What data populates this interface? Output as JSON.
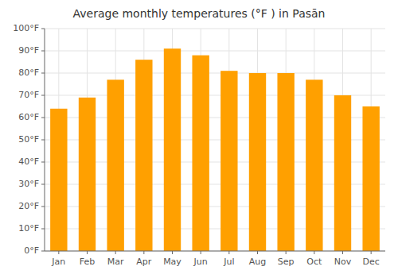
{
  "chart_data": {
    "type": "bar",
    "title": "Average monthly temperatures (°F ) in Pasān",
    "categories": [
      "Jan",
      "Feb",
      "Mar",
      "Apr",
      "May",
      "Jun",
      "Jul",
      "Aug",
      "Sep",
      "Oct",
      "Nov",
      "Dec"
    ],
    "values": [
      64,
      69,
      77,
      86,
      91,
      88,
      81,
      80,
      80,
      77,
      70,
      65
    ],
    "color": "#FFA000",
    "ylim": [
      0,
      100
    ],
    "yticks": [
      {
        "value": 0,
        "label": "0°F"
      },
      {
        "value": 10,
        "label": "10°F"
      },
      {
        "value": 20,
        "label": "20°F"
      },
      {
        "value": 30,
        "label": "30°F"
      },
      {
        "value": 40,
        "label": "40°F"
      },
      {
        "value": 50,
        "label": "50°F"
      },
      {
        "value": 60,
        "label": "60°F"
      },
      {
        "value": 70,
        "label": "70°F"
      },
      {
        "value": 80,
        "label": "80°F"
      },
      {
        "value": 90,
        "label": "90°F"
      },
      {
        "value": 100,
        "label": "100°F"
      }
    ],
    "grid": true
  }
}
